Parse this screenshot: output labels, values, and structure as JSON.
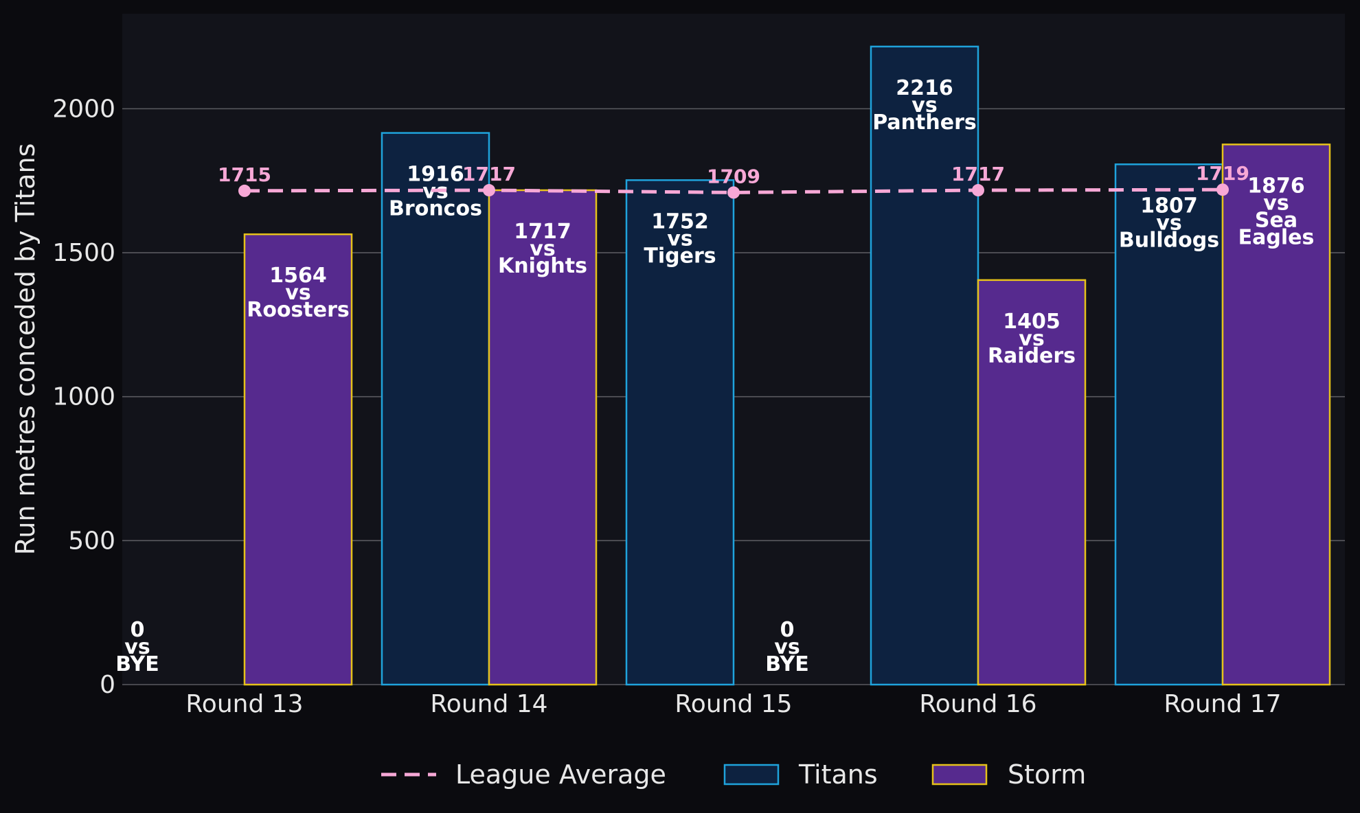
{
  "chart_data": {
    "type": "bar",
    "categories": [
      "Round 13",
      "Round 14",
      "Round 15",
      "Round 16",
      "Round 17"
    ],
    "ylabel": "Run metres conceded by Titans",
    "ylim": [
      0,
      2330
    ],
    "yticks": [
      0,
      500,
      1000,
      1500,
      2000
    ],
    "grid": true,
    "legend_placement": "bottom",
    "series": [
      {
        "name": "Titans",
        "color": "#0d2240",
        "edge_color": "#1fa3dc",
        "values": [
          0,
          1916,
          1752,
          2216,
          1807
        ],
        "labels": [
          [
            "0",
            "vs",
            "BYE"
          ],
          [
            "1916",
            "vs",
            "Broncos"
          ],
          [
            "1752",
            "vs",
            "Tigers"
          ],
          [
            "2216",
            "vs",
            "Panthers"
          ],
          [
            "1807",
            "vs",
            "Bulldogs"
          ]
        ]
      },
      {
        "name": "Storm",
        "color": "#562a8e",
        "edge_color": "#e6c21a",
        "values": [
          1564,
          1717,
          0,
          1405,
          1876
        ],
        "labels": [
          [
            "1564",
            "vs",
            "Roosters"
          ],
          [
            "1717",
            "vs",
            "Knights"
          ],
          [
            "0",
            "vs",
            "BYE"
          ],
          [
            "1405",
            "vs",
            "Raiders"
          ],
          [
            "1876",
            "vs",
            "Sea",
            "Eagles"
          ]
        ]
      }
    ],
    "league_average": {
      "name": "League Average",
      "color": "#f7a8d6",
      "values": [
        1715,
        1717,
        1709,
        1717,
        1719
      ],
      "labels": [
        "1715",
        "1717",
        "1709",
        "1717",
        "1719"
      ]
    },
    "colors": {
      "figure_background": "#0b0b0f",
      "plot_background": "#12131a",
      "grid": "#5a5a60",
      "text": "#e8e8e8"
    }
  }
}
